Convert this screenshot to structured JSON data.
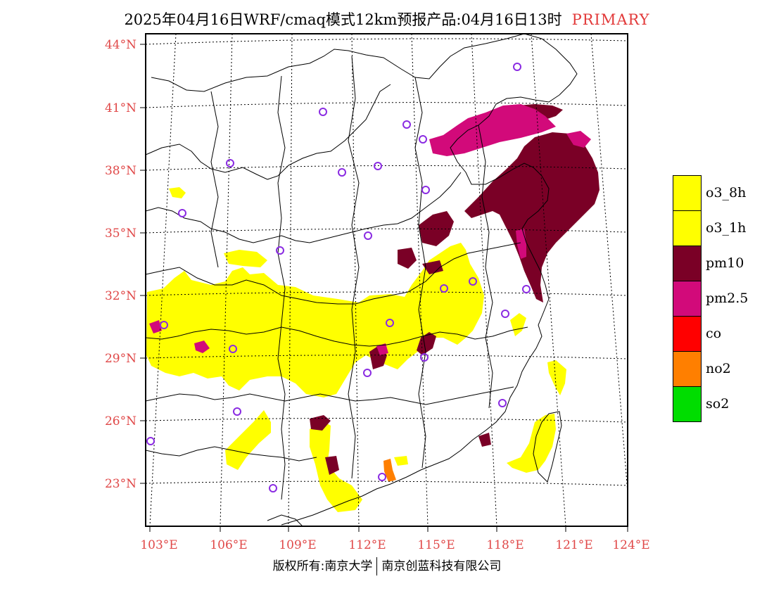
{
  "title": {
    "text": "2025年04月16日WRF/cmaq模式12km预报产品:04月16日13时",
    "tag": "PRIMARY"
  },
  "lat_labels": [
    "44°N",
    "41°N",
    "38°N",
    "35°N",
    "32°N",
    "29°N",
    "26°N",
    "23°N"
  ],
  "lon_labels": [
    "103°E",
    "106°E",
    "109°E",
    "112°E",
    "115°E",
    "118°E",
    "121°E",
    "124°E"
  ],
  "legend": [
    {
      "label": "o3_8h",
      "color": "#ffff00"
    },
    {
      "label": "o3_1h",
      "color": "#ffff00"
    },
    {
      "label": "pm10",
      "color": "#7a0026"
    },
    {
      "label": "pm2.5",
      "color": "#d20a7a"
    },
    {
      "label": "co",
      "color": "#ff0000"
    },
    {
      "label": "no2",
      "color": "#ff7f00"
    },
    {
      "label": "so2",
      "color": "#00dd00"
    }
  ],
  "footer": {
    "left": "版权所有:南京大学",
    "right": "南京创蓝科技有限公司"
  }
}
